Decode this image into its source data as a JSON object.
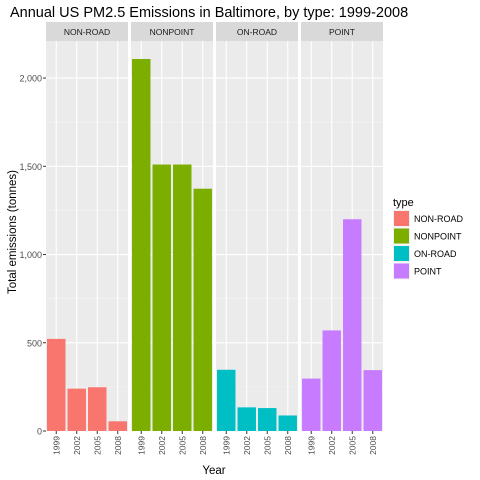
{
  "chart_data": {
    "type": "bar",
    "title": "Annual US PM2.5 Emissions in Baltimore, by type: 1999-2008",
    "xlabel": "Year",
    "ylabel": "Total emissions (tonnes)",
    "categories": [
      "1999",
      "2002",
      "2005",
      "2008"
    ],
    "ylim": [
      0,
      2210
    ],
    "yticks": [
      0,
      500,
      1000,
      1500,
      2000
    ],
    "ytick_labels": [
      "0",
      "500",
      "1,000",
      "1,500",
      "2,000"
    ],
    "grid": true,
    "legend": {
      "title": "type",
      "placement": "right"
    },
    "facets": [
      {
        "name": "NON-ROAD",
        "color": "#F8766D",
        "values": [
          522,
          240,
          248,
          55
        ]
      },
      {
        "name": "NONPOINT",
        "color": "#7CAE00",
        "values": [
          2108,
          1510,
          1510,
          1373
        ]
      },
      {
        "name": "ON-ROAD",
        "color": "#00BFC4",
        "values": [
          347,
          134,
          130,
          88
        ]
      },
      {
        "name": "POINT",
        "color": "#C77CFF",
        "values": [
          297,
          570,
          1200,
          345
        ]
      }
    ]
  }
}
